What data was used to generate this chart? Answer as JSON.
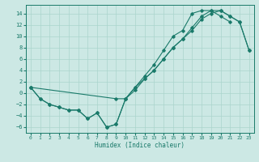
{
  "xlabel": "Humidex (Indice chaleur)",
  "background_color": "#cce8e4",
  "grid_color": "#aad4cc",
  "line_color": "#1a7a6a",
  "xlim": [
    -0.5,
    23.5
  ],
  "ylim": [
    -7,
    15.5
  ],
  "yticks": [
    -6,
    -4,
    -2,
    0,
    2,
    4,
    6,
    8,
    10,
    12,
    14
  ],
  "xticks": [
    0,
    1,
    2,
    3,
    4,
    5,
    6,
    7,
    8,
    9,
    10,
    11,
    12,
    13,
    14,
    15,
    16,
    17,
    18,
    19,
    20,
    21,
    22,
    23
  ],
  "series": [
    {
      "x": [
        0,
        1,
        2,
        3,
        4,
        5,
        6,
        7,
        8,
        9,
        10,
        11,
        12,
        13,
        14,
        15,
        16,
        17,
        18,
        19,
        20,
        21,
        22,
        23
      ],
      "y": [
        1,
        -1,
        -2,
        -2.5,
        -3,
        -3,
        -4.5,
        -3.5,
        -6,
        -5.5,
        -1,
        0.5,
        2.5,
        4,
        6,
        8,
        9.5,
        11,
        13,
        14,
        14.5,
        13.5,
        12.5,
        7.5
      ]
    },
    {
      "x": [
        0,
        1,
        2,
        3,
        4,
        5,
        6,
        7,
        8,
        9,
        10,
        11,
        12,
        13,
        14,
        15,
        16,
        17,
        18,
        19,
        20,
        21
      ],
      "y": [
        1,
        -1,
        -2,
        -2.5,
        -3,
        -3,
        -4.5,
        -3.5,
        -6,
        -5.5,
        -1,
        1,
        3,
        5,
        7.5,
        10,
        11,
        14,
        14.5,
        14.5,
        13.5,
        12.5
      ]
    },
    {
      "x": [
        0,
        9,
        10,
        11,
        12,
        13,
        14,
        15,
        16,
        17,
        18,
        19,
        20,
        21,
        22,
        23
      ],
      "y": [
        1,
        -1,
        -1,
        1,
        2.5,
        4,
        6,
        8,
        9.5,
        11.5,
        13.5,
        14.5,
        14.5,
        13.5,
        12.5,
        7.5
      ]
    }
  ]
}
